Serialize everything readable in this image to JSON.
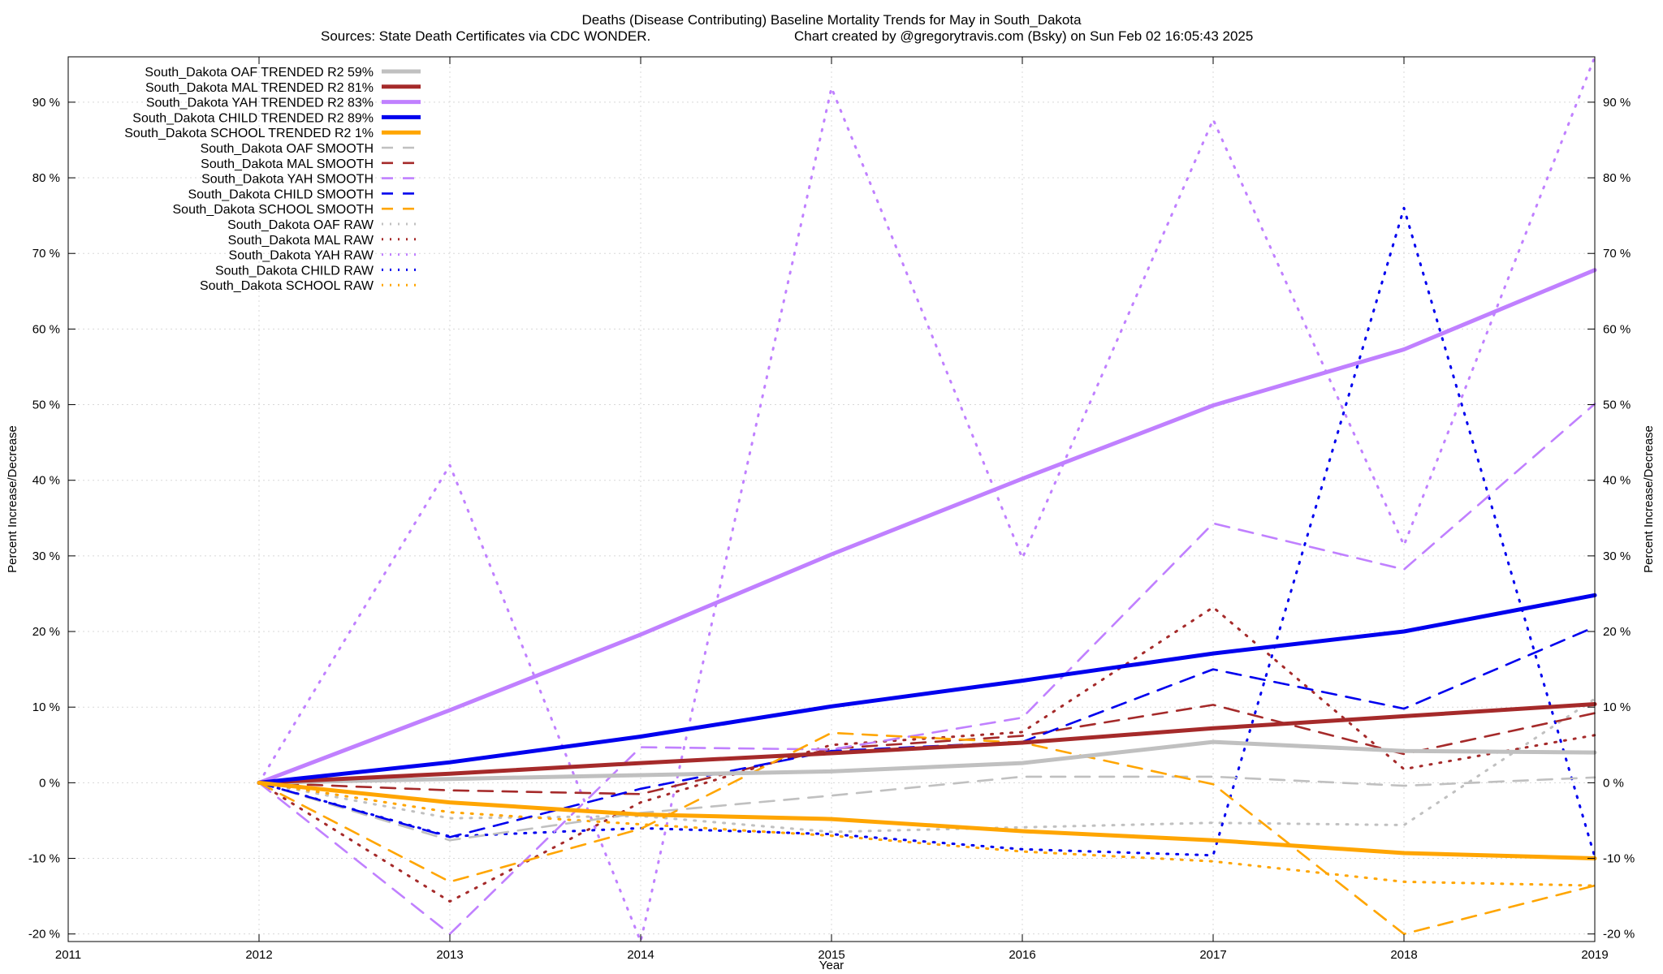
{
  "chart_data": {
    "type": "line",
    "title": "Deaths (Disease Contributing)  Baseline Mortality Trends for May in South_Dakota",
    "subtitle_left": "Sources: State Death Certificates via CDC WONDER.",
    "subtitle_right": "Chart created by @gregorytravis.com (Bsky) on Sun Feb 02 16:05:43 2025",
    "xlabel": "Year",
    "ylabel": "Percent Increase/Decrease",
    "y2label": "Percent Increase/Decrease",
    "xlim": [
      2011,
      2019
    ],
    "ylim": [
      -21,
      96
    ],
    "x_ticks": [
      "2011",
      "2012",
      "2013",
      "2014",
      "2015",
      "2016",
      "2017",
      "2018",
      "2019"
    ],
    "y_ticks": [
      "-20 %",
      "-10 %",
      "0 %",
      "10 %",
      "20 %",
      "30 %",
      "40 %",
      "50 %",
      "60 %",
      "70 %",
      "80 %",
      "90 %"
    ],
    "y_tick_values": [
      -20,
      -10,
      0,
      10,
      20,
      30,
      40,
      50,
      60,
      70,
      80,
      90
    ],
    "x": [
      2012,
      2013,
      2014,
      2015,
      2016,
      2017,
      2018,
      2019
    ],
    "grid": true,
    "legend_position": "top-left",
    "series": [
      {
        "name": "South_Dakota OAF TRENDED R2  59%",
        "color": "#c0c0c0",
        "style": "solid",
        "values": [
          0,
          0.5,
          1.0,
          1.5,
          2.6,
          5.4,
          4.2,
          4.0
        ]
      },
      {
        "name": "South_Dakota MAL TRENDED R2  81%",
        "color": "#a52a2a",
        "style": "solid",
        "values": [
          0,
          1.2,
          2.6,
          3.9,
          5.3,
          7.2,
          8.8,
          10.4
        ]
      },
      {
        "name": "South_Dakota YAH TRENDED R2  83%",
        "color": "#c080ff",
        "style": "solid",
        "values": [
          0,
          9.6,
          19.6,
          30.2,
          40.2,
          49.9,
          57.3,
          67.8
        ]
      },
      {
        "name": "South_Dakota CHILD TRENDED R2  89%",
        "color": "#0000ee",
        "style": "solid",
        "values": [
          0,
          2.7,
          6.1,
          10.1,
          13.5,
          17.1,
          20.0,
          24.8
        ]
      },
      {
        "name": "South_Dakota SCHOOL TRENDED R2   1%",
        "color": "#ffa500",
        "style": "solid",
        "values": [
          0,
          -2.6,
          -4.2,
          -4.8,
          -6.4,
          -7.6,
          -9.3,
          -10.0
        ]
      },
      {
        "name": "South_Dakota OAF SMOOTH",
        "color": "#c0c0c0",
        "style": "dashed",
        "values": [
          0,
          -7.6,
          -4.0,
          -1.7,
          0.8,
          0.8,
          -0.4,
          0.7
        ]
      },
      {
        "name": "South_Dakota MAL SMOOTH",
        "color": "#a52a2a",
        "style": "dashed",
        "values": [
          0,
          -1.0,
          -1.5,
          4.5,
          6.2,
          10.3,
          3.8,
          9.2
        ]
      },
      {
        "name": "South_Dakota YAH SMOOTH",
        "color": "#c080ff",
        "style": "dashed",
        "values": [
          0,
          -20.0,
          4.7,
          4.4,
          8.6,
          34.3,
          28.2,
          50.1
        ]
      },
      {
        "name": "South_Dakota CHILD SMOOTH",
        "color": "#0000ee",
        "style": "dashed",
        "values": [
          0,
          -7.2,
          -0.8,
          4.2,
          5.4,
          15.0,
          9.8,
          20.6
        ]
      },
      {
        "name": "South_Dakota SCHOOL SMOOTH",
        "color": "#ffa500",
        "style": "dashed",
        "values": [
          0,
          -13.1,
          -6.1,
          6.6,
          5.3,
          -0.2,
          -20.0,
          -13.6
        ]
      },
      {
        "name": "South_Dakota OAF RAW",
        "color": "#c0c0c0",
        "style": "dotted",
        "values": [
          0,
          -4.7,
          -4.4,
          -6.5,
          -5.9,
          -5.3,
          -5.6,
          11.1
        ]
      },
      {
        "name": "South_Dakota MAL RAW",
        "color": "#a52a2a",
        "style": "dotted",
        "values": [
          0,
          -15.7,
          -2.6,
          5.0,
          6.7,
          23.2,
          1.8,
          6.3
        ]
      },
      {
        "name": "South_Dakota YAH RAW",
        "color": "#c080ff",
        "style": "dotted",
        "values": [
          0,
          42.0,
          -21.0,
          91.9,
          29.7,
          87.7,
          31.4,
          96.0
        ]
      },
      {
        "name": "South_Dakota CHILD RAW",
        "color": "#0000ee",
        "style": "dotted",
        "values": [
          0,
          -7.1,
          -6.0,
          -6.8,
          -8.8,
          -9.6,
          76.0,
          -9.8
        ]
      },
      {
        "name": "South_Dakota SCHOOL RAW",
        "color": "#ffa500",
        "style": "dotted",
        "values": [
          0,
          -3.9,
          -5.5,
          -7.0,
          -9.1,
          -10.4,
          -13.1,
          -13.6
        ]
      }
    ]
  }
}
